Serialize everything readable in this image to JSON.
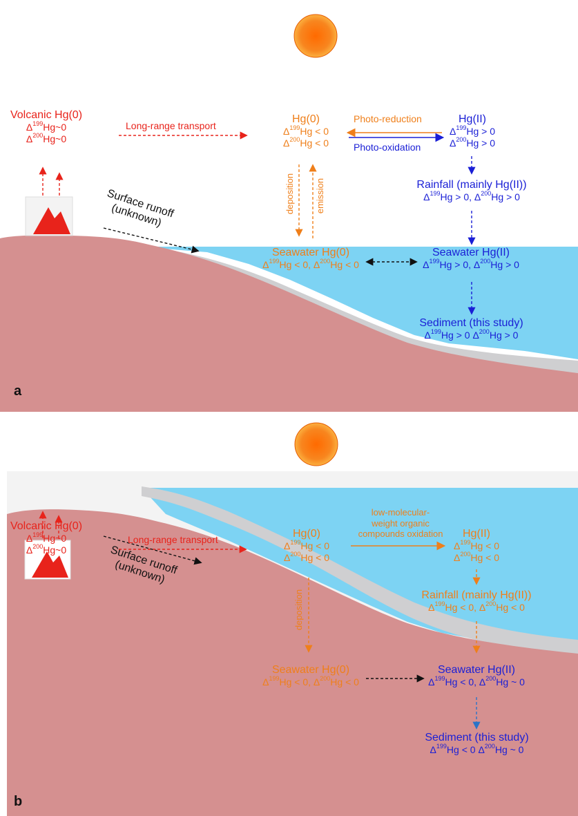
{
  "panel_a": {
    "letter": "a",
    "volcanic": {
      "title": "Volcanic Hg(0)",
      "d199": "Hg~0",
      "d200": "Hg~0"
    },
    "long_range": "Long-range transport",
    "hg0": {
      "title": "Hg(0)",
      "d199": "Hg < 0",
      "d200": "Hg < 0"
    },
    "photo_reduction": "Photo-reduction",
    "photo_oxidation": "Photo-oxidation",
    "hg2": {
      "title": "Hg(II)",
      "d199": "Hg > 0",
      "d200": "Hg > 0"
    },
    "deposition": "deposition",
    "emission": "emission",
    "rainfall": {
      "title": "Rainfall (mainly Hg(II))",
      "d199": "Hg > 0, ",
      "d200": "Hg > 0"
    },
    "runoff": {
      "line1": "Surface runoff",
      "line2": "(unknown)"
    },
    "seawater_hg0": {
      "title": "Seawater Hg(0)",
      "d199": "Hg < 0, ",
      "d200": "Hg < 0"
    },
    "seawater_hg2": {
      "title": "Seawater Hg(II)",
      "d199": "Hg > 0, ",
      "d200": "Hg > 0"
    },
    "sediment": {
      "title": "Sediment (this study)",
      "d199": "Hg > 0 ",
      "d200": "Hg > 0"
    }
  },
  "panel_b": {
    "letter": "b",
    "volcanic": {
      "title": "Volcanic Hg(0)",
      "d199": "Hg~0",
      "d200": "Hg~0"
    },
    "long_range": "Long-range transport",
    "hg0": {
      "title": "Hg(0)",
      "d199": "Hg < 0",
      "d200": "Hg < 0"
    },
    "oxidation_line1": "low-molecular-",
    "oxidation_line2": "weight organic",
    "oxidation_line3": "compounds oxidation",
    "hg2": {
      "title": "Hg(II)",
      "d199": "Hg < 0",
      "d200": "Hg < 0"
    },
    "deposition": "deposition",
    "rainfall": {
      "title": "Rainfall (mainly Hg(II))",
      "d199": "Hg < 0, ",
      "d200": "Hg < 0"
    },
    "runoff": {
      "line1": "Surface runoff",
      "line2": "(unknown)"
    },
    "seawater_hg0": {
      "title": "Seawater Hg(0)",
      "d199": "Hg < 0, ",
      "d200": "Hg < 0"
    },
    "seawater_hg2": {
      "title": "Seawater Hg(II)",
      "d199": "Hg < 0, ",
      "d200": "Hg ~ 0"
    },
    "sediment": {
      "title": "Sediment (this study)",
      "d199": "Hg < 0 ",
      "d200": "Hg ~ 0"
    }
  },
  "symbols": {
    "delta": "Δ",
    "m199": "199",
    "m200": "200"
  },
  "colors": {
    "volcanic": "#e8231b",
    "atmosphere_hg0": "#ef7f1a",
    "atmosphere_hg2_a": "#1a1fd6",
    "land": "#d59090",
    "sea": "#7dd3f3",
    "sun": "#f6821f"
  },
  "icons": [
    "sun-icon",
    "volcano-icon"
  ]
}
